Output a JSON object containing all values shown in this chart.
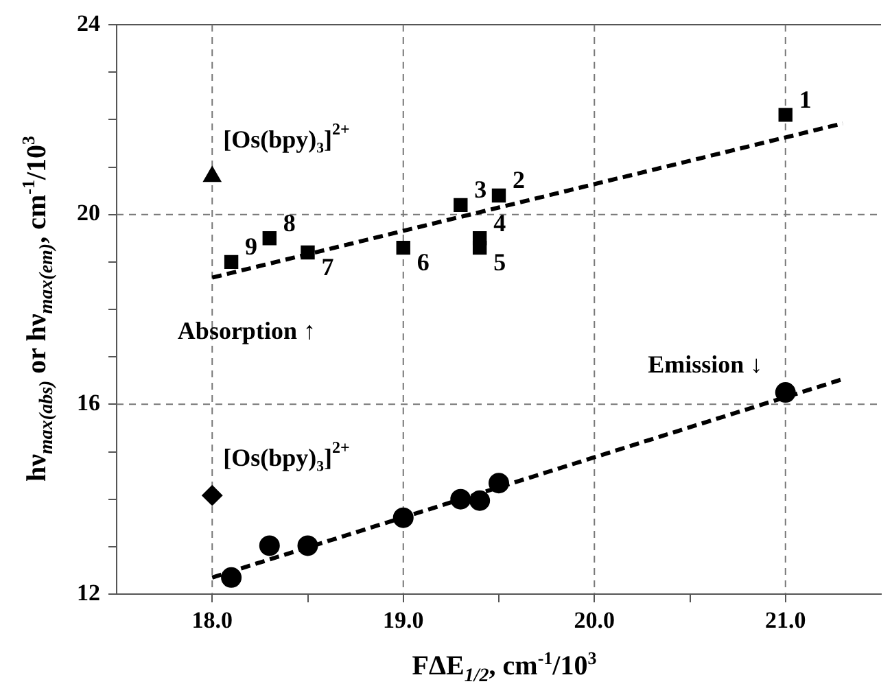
{
  "chart_data": {
    "type": "scatter",
    "xlabel": "FΔE$_{1/2}$, cm$^{-1}$/10$^{3}$",
    "ylabel": "hν$_{max(abs)}$ or hν$_{max(em)}$, cm$^{-1}$/10$^{3}$",
    "xlim": [
      17.5,
      21.5
    ],
    "ylim": [
      12,
      24
    ],
    "xticks": [
      {
        "value": 18,
        "label": "18.0"
      },
      {
        "value": 18.5,
        "label": null
      },
      {
        "value": 19,
        "label": "19.0"
      },
      {
        "value": 19.5,
        "label": null
      },
      {
        "value": 20,
        "label": "20.0"
      },
      {
        "value": 20.5,
        "label": null
      },
      {
        "value": 21,
        "label": "21.0"
      }
    ],
    "yticks": [
      12,
      {
        "value": 13,
        "label": null
      },
      {
        "value": 14,
        "label": null
      },
      {
        "value": 15,
        "label": null
      },
      16,
      {
        "value": 17,
        "label": null
      },
      {
        "value": 18,
        "label": null
      },
      {
        "value": 19,
        "label": null
      },
      20,
      {
        "value": 21,
        "label": null
      },
      {
        "value": 22,
        "label": null
      },
      {
        "value": 23,
        "label": null
      },
      24
    ],
    "grid": true,
    "legend": false,
    "series": [
      {
        "marker": "square",
        "color": "#000000",
        "x": [
          21.0,
          19.5,
          19.3,
          19.4,
          19.4,
          19.0,
          18.5,
          18.3,
          18.1
        ],
        "values": [
          22.1,
          20.4,
          20.2,
          19.5,
          19.3,
          19.3,
          19.2,
          19.5,
          19.0
        ]
      },
      {
        "marker": "triangle",
        "color": "#000000",
        "x": [
          18.0
        ],
        "values": [
          20.8
        ]
      },
      {
        "marker": "circle",
        "color": "#000000",
        "x": [
          21.0,
          19.5,
          19.4,
          19.3,
          19.0,
          18.5,
          18.3,
          18.1
        ],
        "values": [
          16.25,
          14.34,
          13.97,
          14.0,
          13.61,
          13.02,
          13.02,
          12.35
        ]
      },
      {
        "marker": "diamond",
        "color": "#000000",
        "x": [
          18.0
        ],
        "values": [
          14.08
        ]
      },
      {
        "type": "line",
        "marker": "none",
        "line_style": "dashed",
        "color": "#000000",
        "x": [
          18.0,
          21.3
        ],
        "values": [
          18.67,
          21.92
        ]
      },
      {
        "type": "line",
        "marker": "none",
        "line_style": "dashed",
        "color": "#000000",
        "x": [
          18.0,
          21.3
        ],
        "values": [
          12.35,
          16.53
        ]
      }
    ],
    "annotations": [
      {
        "text": "1",
        "x": 21.0,
        "y": 22.1
      },
      {
        "text": "2",
        "x": 19.5,
        "y": 20.4
      },
      {
        "text": "3",
        "x": 19.3,
        "y": 20.2
      },
      {
        "text": "4",
        "x": 19.4,
        "y": 19.5
      },
      {
        "text": "5",
        "x": 19.4,
        "y": 19.3
      },
      {
        "text": "6",
        "x": 19.0,
        "y": 19.3
      },
      {
        "text": "7",
        "x": 18.5,
        "y": 19.2
      },
      {
        "text": "8",
        "x": 18.3,
        "y": 19.5
      },
      {
        "text": "9",
        "x": 18.1,
        "y": 19.0
      },
      {
        "text": "[Os(bpy)₃]$^{2+}$",
        "x": 18.0,
        "y": 20.8
      },
      {
        "text": "[Os(bpy)₃]$^{2+}$",
        "x": 18.0,
        "y": 14.08
      },
      "Absorption ↑",
      "Emission ↓"
    ]
  }
}
